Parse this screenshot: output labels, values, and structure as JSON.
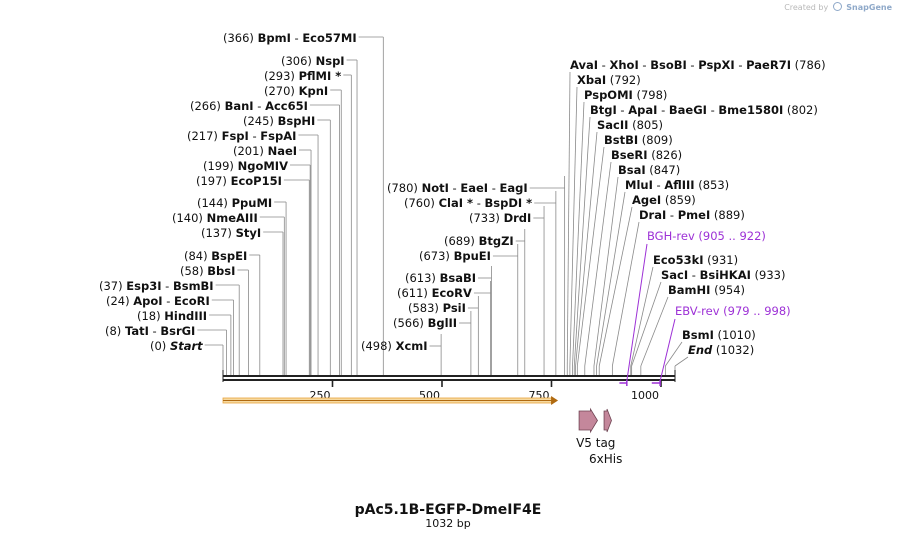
{
  "brand": {
    "prefix": "Created by",
    "name": "SnapGene"
  },
  "map": {
    "title": "pAc5.1B-EGFP-DmeIF4E",
    "length_label": "1032 bp",
    "length": 1032,
    "ticks": [
      {
        "value": 250,
        "label": "250"
      },
      {
        "value": 500,
        "label": "500"
      },
      {
        "value": 750,
        "label": "750"
      },
      {
        "value": 1000,
        "label": "1000"
      }
    ],
    "sites_left": [
      {
        "pos": 0,
        "pos_label": "(0)",
        "parts": [
          "Start"
        ],
        "special": true
      },
      {
        "pos": 8,
        "pos_label": "(8)",
        "parts": [
          "TatI",
          "BsrGI"
        ]
      },
      {
        "pos": 18,
        "pos_label": "(18)",
        "parts": [
          "HindIII"
        ]
      },
      {
        "pos": 24,
        "pos_label": "(24)",
        "parts": [
          "ApoI",
          "EcoRI"
        ]
      },
      {
        "pos": 37,
        "pos_label": "(37)",
        "parts": [
          "Esp3I",
          "BsmBI"
        ]
      },
      {
        "pos": 58,
        "pos_label": "(58)",
        "parts": [
          "BbsI"
        ]
      },
      {
        "pos": 84,
        "pos_label": "(84)",
        "parts": [
          "BspEI"
        ]
      },
      {
        "pos": 137,
        "pos_label": "(137)",
        "parts": [
          "StyI"
        ]
      },
      {
        "pos": 140,
        "pos_label": "(140)",
        "parts": [
          "NmeAIII"
        ]
      },
      {
        "pos": 144,
        "pos_label": "(144)",
        "parts": [
          "PpuMI"
        ]
      },
      {
        "pos": 197,
        "pos_label": "(197)",
        "parts": [
          "EcoP15I"
        ]
      },
      {
        "pos": 199,
        "pos_label": "(199)",
        "parts": [
          "NgoMIV"
        ]
      },
      {
        "pos": 201,
        "pos_label": "(201)",
        "parts": [
          "NaeI"
        ]
      },
      {
        "pos": 217,
        "pos_label": "(217)",
        "parts": [
          "FspI",
          "FspAI"
        ]
      },
      {
        "pos": 245,
        "pos_label": "(245)",
        "parts": [
          "BspHI"
        ]
      },
      {
        "pos": 266,
        "pos_label": "(266)",
        "parts": [
          "BanI",
          "Acc65I"
        ]
      },
      {
        "pos": 270,
        "pos_label": "(270)",
        "parts": [
          "KpnI"
        ]
      },
      {
        "pos": 293,
        "pos_label": "(293)",
        "parts": [
          "PflMI *"
        ]
      },
      {
        "pos": 306,
        "pos_label": "(306)",
        "parts": [
          "NspI"
        ]
      },
      {
        "pos": 366,
        "pos_label": "(366)",
        "parts": [
          "BpmI",
          "Eco57MI"
        ]
      }
    ],
    "sites_middle": [
      {
        "pos": 498,
        "pos_label": "(498)",
        "parts": [
          "XcmI"
        ]
      },
      {
        "pos": 566,
        "pos_label": "(566)",
        "parts": [
          "BglII"
        ]
      },
      {
        "pos": 583,
        "pos_label": "(583)",
        "parts": [
          "PsiI"
        ]
      },
      {
        "pos": 611,
        "pos_label": "(611)",
        "parts": [
          "EcoRV"
        ]
      },
      {
        "pos": 613,
        "pos_label": "(613)",
        "parts": [
          "BsaBI"
        ]
      },
      {
        "pos": 673,
        "pos_label": "(673)",
        "parts": [
          "BpuEI"
        ]
      },
      {
        "pos": 689,
        "pos_label": "(689)",
        "parts": [
          "BtgZI"
        ]
      },
      {
        "pos": 733,
        "pos_label": "(733)",
        "parts": [
          "DrdI"
        ]
      },
      {
        "pos": 760,
        "pos_label": "(760)",
        "parts": [
          "ClaI *",
          "BspDI *"
        ]
      },
      {
        "pos": 780,
        "pos_label": "(780)",
        "parts": [
          "NotI",
          "EaeI",
          "EagI"
        ]
      }
    ],
    "sites_right": [
      {
        "pos": 786,
        "pos_label": "(786)",
        "parts": [
          "AvaI",
          "XhoI",
          "BsoBI",
          "PspXI",
          "PaeR7I"
        ]
      },
      {
        "pos": 792,
        "pos_label": "(792)",
        "parts": [
          "XbaI"
        ]
      },
      {
        "pos": 798,
        "pos_label": "(798)",
        "parts": [
          "PspOMI"
        ]
      },
      {
        "pos": 802,
        "pos_label": "(802)",
        "parts": [
          "BtgI",
          "ApaI",
          "BaeGI",
          "Bme1580I"
        ]
      },
      {
        "pos": 805,
        "pos_label": "(805)",
        "parts": [
          "SacII"
        ]
      },
      {
        "pos": 809,
        "pos_label": "(809)",
        "parts": [
          "BstBI"
        ]
      },
      {
        "pos": 826,
        "pos_label": "(826)",
        "parts": [
          "BseRI"
        ]
      },
      {
        "pos": 847,
        "pos_label": "(847)",
        "parts": [
          "BsaI"
        ]
      },
      {
        "pos": 853,
        "pos_label": "(853)",
        "parts": [
          "MluI",
          "AflIII"
        ]
      },
      {
        "pos": 859,
        "pos_label": "(859)",
        "parts": [
          "AgeI"
        ]
      },
      {
        "pos": 889,
        "pos_label": "(889)",
        "parts": [
          "DraI",
          "PmeI"
        ]
      },
      {
        "pos": 931,
        "pos_label": "(931)",
        "parts": [
          "Eco53kI"
        ]
      },
      {
        "pos": 933,
        "pos_label": "(933)",
        "parts": [
          "SacI",
          "BsiHKAI"
        ]
      },
      {
        "pos": 954,
        "pos_label": "(954)",
        "parts": [
          "BamHI"
        ]
      },
      {
        "pos": 1010,
        "pos_label": "(1010)",
        "parts": [
          "BsmI"
        ]
      },
      {
        "pos": 1032,
        "pos_label": "(1032)",
        "parts": [
          "End"
        ],
        "special": true
      }
    ],
    "primers": [
      {
        "name": "BGH-rev",
        "range_label": "(905 .. 922)",
        "start": 905,
        "end": 922
      },
      {
        "name": "EBV-rev",
        "range_label": "(979 .. 998)",
        "start": 979,
        "end": 998
      }
    ],
    "features": [
      {
        "kind": "orf",
        "start": 0,
        "end": 765,
        "color": "#e8a33d"
      },
      {
        "kind": "tag",
        "name": "V5 tag",
        "start": 813,
        "end": 855,
        "color": "#c4879b"
      },
      {
        "kind": "tag",
        "name": "6xHis",
        "start": 870,
        "end": 887,
        "color": "#c4879b"
      }
    ]
  }
}
